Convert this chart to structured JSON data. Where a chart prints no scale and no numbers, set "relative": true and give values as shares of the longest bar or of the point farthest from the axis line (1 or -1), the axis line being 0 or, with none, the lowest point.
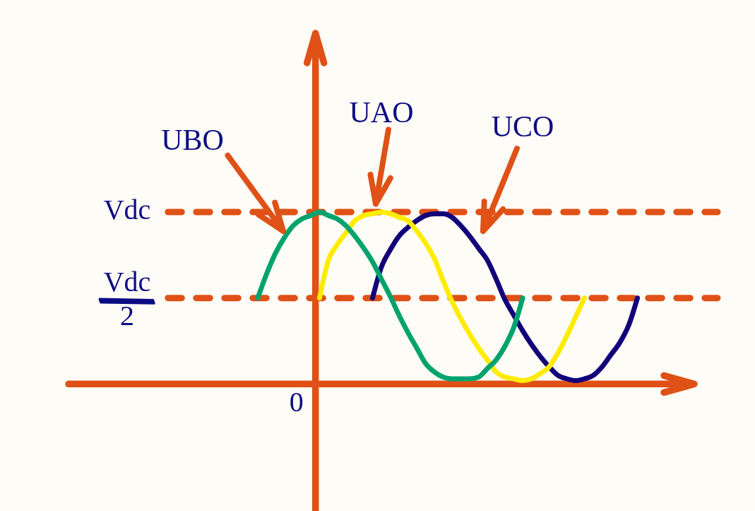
{
  "chart_data": {
    "type": "line",
    "relative": true,
    "categories": [
      null,
      null,
      null,
      null,
      null,
      null,
      null,
      null,
      null,
      null,
      null,
      null,
      null,
      null,
      null,
      null,
      null,
      null,
      null,
      null,
      null,
      null,
      null,
      null,
      null,
      null,
      null,
      null,
      null,
      null,
      null,
      null,
      null,
      null,
      null,
      null,
      null,
      null,
      null,
      null,
      null,
      null,
      null,
      null
    ],
    "series": [
      {
        "name": "UBO",
        "color": "#00a36e",
        "values": [
          0.5,
          0.64,
          0.76,
          0.85,
          0.92,
          0.96,
          0.98,
          1,
          0.98,
          0.96,
          0.92,
          0.86,
          0.79,
          0.71,
          0.61,
          0.51,
          0.4,
          0.3,
          0.21,
          0.12,
          0.07,
          0.04,
          0.03,
          0.03,
          0.03,
          0.04,
          0.09,
          0.14,
          0.22,
          0.33,
          0.5,
          null,
          null,
          null,
          null,
          null,
          null,
          null,
          null,
          null,
          null,
          null,
          null,
          null
        ]
      },
      {
        "name": "UAO",
        "color": "#ffec00",
        "values": [
          null,
          null,
          null,
          null,
          null,
          null,
          null,
          0.5,
          0.72,
          0.81,
          0.88,
          0.95,
          0.98,
          0.99,
          1,
          0.99,
          0.97,
          0.95,
          0.89,
          0.82,
          0.73,
          0.6,
          0.48,
          0.38,
          0.29,
          0.21,
          0.14,
          0.07,
          0.04,
          0.03,
          0.02,
          0.03,
          0.06,
          0.1,
          0.18,
          0.28,
          0.39,
          0.5,
          null,
          null,
          null,
          null,
          null,
          null
        ]
      },
      {
        "name": "UCO",
        "color": "#12007a",
        "values": [
          null,
          null,
          null,
          null,
          null,
          null,
          null,
          null,
          null,
          null,
          null,
          null,
          null,
          0.5,
          0.68,
          0.78,
          0.86,
          0.91,
          0.95,
          0.98,
          0.99,
          0.99,
          0.97,
          0.92,
          0.86,
          0.79,
          0.72,
          0.61,
          0.49,
          0.4,
          0.31,
          0.23,
          0.16,
          0.1,
          0.05,
          0.03,
          0.02,
          0.03,
          0.05,
          0.1,
          0.17,
          0.24,
          0.34,
          0.5
        ]
      }
    ],
    "ref_lines": [
      {
        "axis": "y",
        "value": 1,
        "label": "Vdc",
        "color": "#df5116",
        "line_style": "dashed"
      },
      {
        "axis": "y",
        "value": 0.5,
        "label": "Vdc/2",
        "color": "#df5116",
        "line_style": "dashed"
      }
    ],
    "annotations": [
      "0"
    ]
  }
}
